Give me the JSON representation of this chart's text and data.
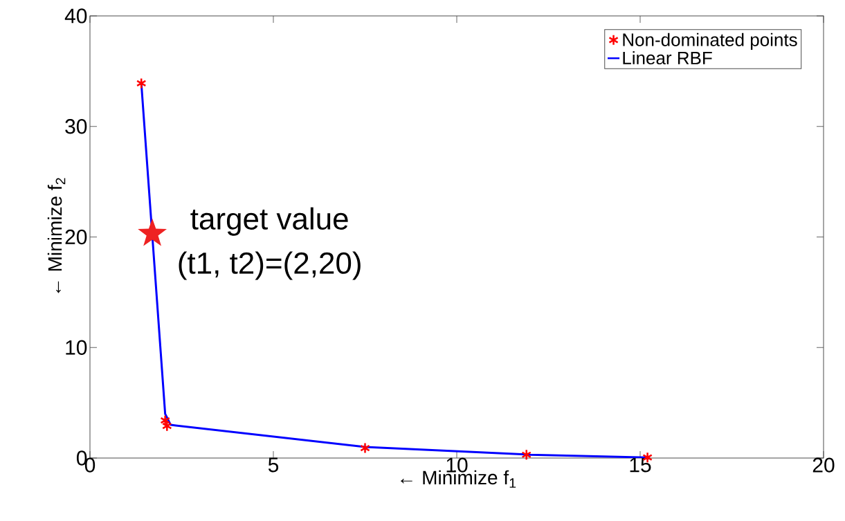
{
  "chart_data": {
    "type": "scatter",
    "xlabel": "← Minimize f$_{1}$",
    "ylabel": "← Minimize f$_{2}$",
    "xlim": [
      0,
      20
    ],
    "ylim": [
      0,
      40
    ],
    "xticks": [
      0,
      5,
      10,
      15,
      20
    ],
    "yticks": [
      0,
      10,
      20,
      30,
      40
    ],
    "legend": "top right",
    "grid": false,
    "annotations": [
      "target value",
      "(t1, t2)=(2,20)"
    ],
    "series": [
      {
        "name": "Non-dominated points",
        "marker": "cross",
        "color": "#ff0000",
        "x": [
          1.4,
          2.05,
          2.1,
          7.5,
          11.9,
          15.2
        ],
        "values": [
          33.9,
          3.4,
          2.9,
          0.9,
          0.3,
          0.05
        ]
      },
      {
        "name": "Linear RBF",
        "type": "line",
        "marker": "none",
        "line_style": "solid",
        "color": "#0000ff",
        "x": [
          1.4,
          2.05,
          2.2,
          7.5,
          12,
          15.2
        ],
        "values": [
          33.9,
          4,
          3,
          1,
          0.3,
          0.05
        ]
      },
      {
        "marker": "star",
        "color": "#ee2222",
        "x": [
          1.7
        ],
        "values": [
          20.3
        ]
      }
    ]
  }
}
